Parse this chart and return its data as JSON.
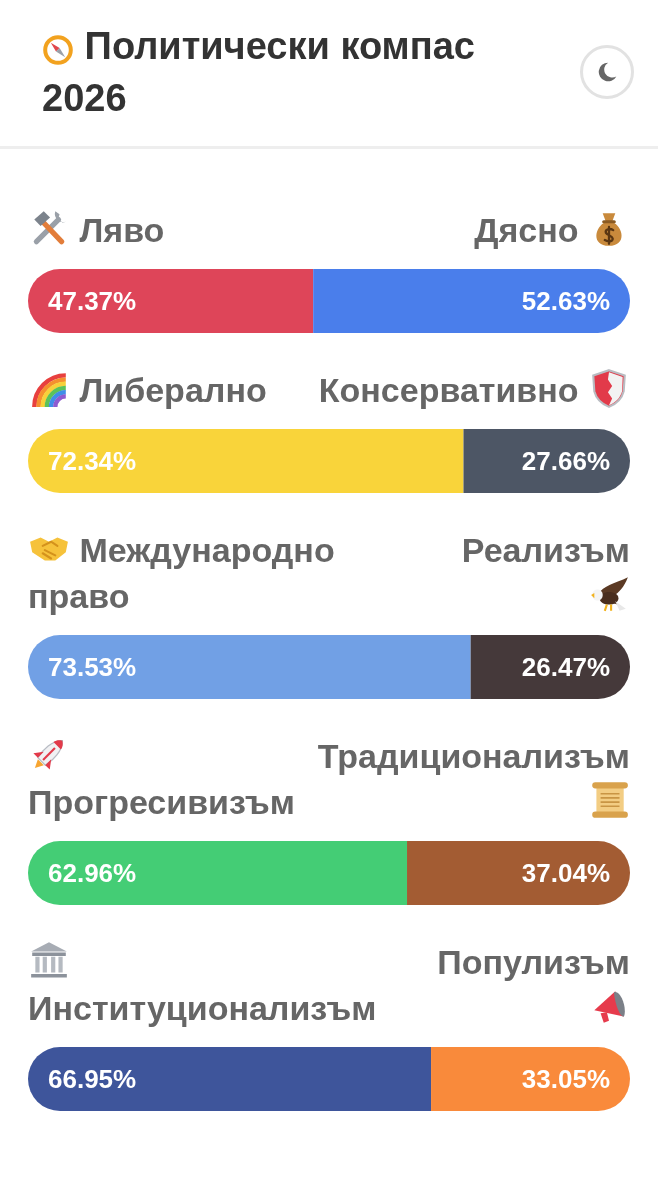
{
  "chart_data": [
    {
      "type": "bar",
      "title": "Политически компас 2026",
      "orientation": "horizontal",
      "stacked": true,
      "tick_labels": false,
      "categories": [
        null
      ],
      "series": [
        {
          "name": "Ляво",
          "color": "#de4559",
          "values": [
            47.37
          ],
          "value_labels": [
            "47.37%"
          ]
        },
        {
          "name": "Дясно",
          "color": "#4a7eeb",
          "values": [
            52.63
          ],
          "value_labels": [
            "52.63%"
          ]
        }
      ]
    },
    {
      "type": "bar",
      "orientation": "horizontal",
      "stacked": true,
      "tick_labels": false,
      "categories": [
        null
      ],
      "series": [
        {
          "name": "Либерално",
          "color": "#f9d43a",
          "values": [
            72.34
          ],
          "value_labels": [
            "72.34%"
          ]
        },
        {
          "name": "Консервативно",
          "color": "#4d5665",
          "values": [
            27.66
          ],
          "value_labels": [
            "27.66%"
          ]
        }
      ]
    },
    {
      "type": "bar",
      "orientation": "horizontal",
      "stacked": true,
      "tick_labels": false,
      "categories": [
        null
      ],
      "series": [
        {
          "name": "Международно право",
          "color": "#71a0e5",
          "values": [
            73.53
          ],
          "value_labels": [
            "73.53%"
          ]
        },
        {
          "name": "Реализъм",
          "color": "#45393a",
          "values": [
            26.47
          ],
          "value_labels": [
            "26.47%"
          ]
        }
      ]
    },
    {
      "type": "bar",
      "orientation": "horizontal",
      "stacked": true,
      "tick_labels": false,
      "categories": [
        null
      ],
      "series": [
        {
          "name": "Прогресивизъм",
          "color": "#44cd75",
          "values": [
            62.96
          ],
          "value_labels": [
            "62.96%"
          ]
        },
        {
          "name": "Традиционализъм",
          "color": "#a35c33",
          "values": [
            37.04
          ],
          "value_labels": [
            "37.04%"
          ]
        }
      ]
    },
    {
      "type": "bar",
      "orientation": "horizontal",
      "stacked": true,
      "tick_labels": false,
      "categories": [
        null
      ],
      "series": [
        {
          "name": "Институционализъм",
          "color": "#3e559b",
          "values": [
            66.95
          ],
          "value_labels": [
            "66.95%"
          ]
        },
        {
          "name": "Популизъм",
          "color": "#f98a3b",
          "values": [
            33.05
          ],
          "value_labels": [
            "33.05%"
          ]
        }
      ]
    }
  ]
}
